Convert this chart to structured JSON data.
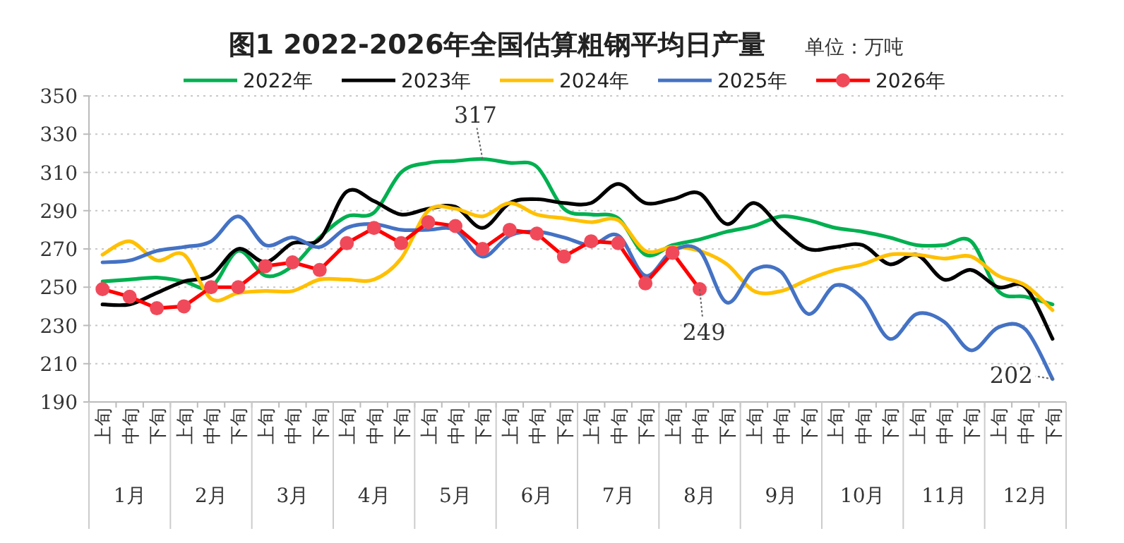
{
  "chart_data": {
    "type": "line",
    "title": "图1 2022-2026年全国估算粗钢平均日产量",
    "subtitle": "单位：万吨",
    "categories": [
      "上旬",
      "中旬",
      "下旬",
      "上旬",
      "中旬",
      "下旬",
      "上旬",
      "中旬",
      "下旬",
      "上旬",
      "中旬",
      "下旬",
      "上旬",
      "中旬",
      "下旬",
      "上旬",
      "中旬",
      "下旬",
      "上旬",
      "中旬",
      "下旬",
      "上旬",
      "中旬",
      "下旬",
      "上旬",
      "中旬",
      "下旬",
      "上旬",
      "中旬",
      "下旬",
      "上旬",
      "中旬",
      "下旬",
      "上旬",
      "中旬",
      "下旬"
    ],
    "series": [
      {
        "name": "2022年",
        "color": "#00b050",
        "values": [
          253,
          254,
          255,
          253,
          250,
          269,
          256,
          261,
          276,
          287,
          289,
          310,
          315,
          316,
          317,
          315,
          313,
          291,
          288,
          286,
          267,
          272,
          275,
          279,
          282,
          287,
          285,
          281,
          279,
          276,
          272,
          272,
          274,
          248,
          245,
          241
        ]
      },
      {
        "name": "2023年",
        "color": "#000000",
        "values": [
          241,
          241,
          247,
          253,
          256,
          270,
          263,
          273,
          275,
          300,
          295,
          288,
          291,
          292,
          281,
          294,
          296,
          294,
          294,
          304,
          294,
          296,
          299,
          283,
          294,
          281,
          270,
          271,
          272,
          262,
          267,
          254,
          259,
          250,
          250,
          223
        ]
      },
      {
        "name": "2024年",
        "color": "#ffc000",
        "values": [
          267,
          274,
          264,
          267,
          244,
          247,
          248,
          248,
          254,
          254,
          254,
          265,
          290,
          291,
          287,
          294,
          288,
          286,
          284,
          285,
          269,
          271,
          269,
          262,
          248,
          248,
          254,
          259,
          262,
          267,
          267,
          265,
          266,
          256,
          251,
          238
        ]
      },
      {
        "name": "2025年",
        "color": "#4472c4",
        "values": [
          263,
          264,
          269,
          271,
          274,
          287,
          272,
          276,
          271,
          281,
          283,
          280,
          280,
          280,
          266,
          277,
          279,
          276,
          272,
          277,
          256,
          269,
          269,
          242,
          259,
          258,
          236,
          251,
          244,
          223,
          236,
          232,
          217,
          229,
          228,
          202
        ]
      },
      {
        "name": "2026年",
        "color": "#ff0000",
        "marker": "circle",
        "values": [
          249,
          245,
          239,
          240,
          250,
          250,
          261,
          263,
          259,
          273,
          281,
          273,
          284,
          282,
          270,
          280,
          278,
          266,
          274,
          273,
          252,
          268,
          249,
          null,
          null,
          null,
          null,
          null,
          null,
          null,
          null,
          null,
          null,
          null,
          null,
          null
        ]
      }
    ],
    "ylim": [
      190,
      350
    ],
    "yticks": [
      190,
      210,
      230,
      250,
      270,
      290,
      310,
      330,
      350
    ],
    "grid": "y",
    "legend": "top",
    "annotations": [
      "1月",
      "2月",
      "3月",
      "4月",
      "5月",
      "6月",
      "7月",
      "8月",
      "9月",
      "10月",
      "11月",
      "12月",
      {
        "text": "317",
        "y": 317
      },
      {
        "text": "249",
        "y": 249
      },
      "202"
    ]
  }
}
